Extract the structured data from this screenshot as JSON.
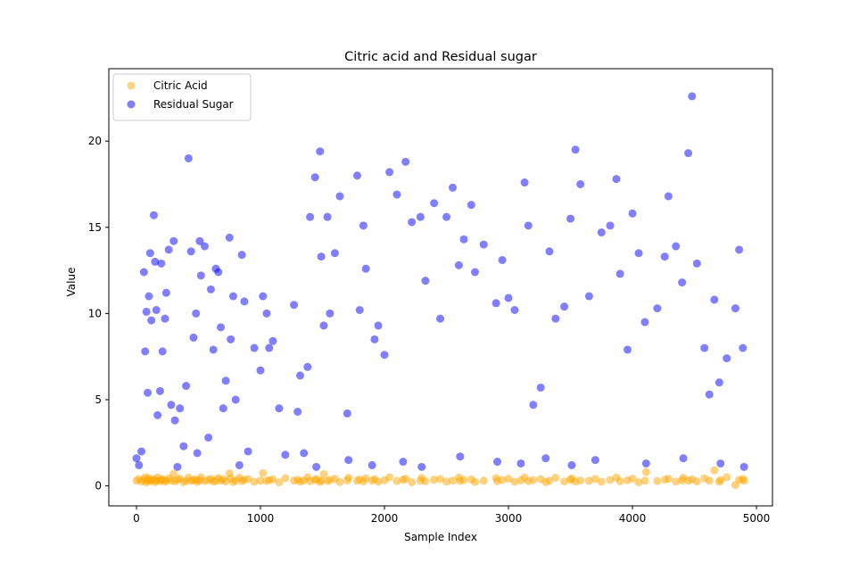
{
  "chart_data": {
    "type": "scatter",
    "title": "Citric acid and Residual sugar",
    "x_label": "Sample Index",
    "y_label": "Value",
    "x": [
      0,
      20,
      40,
      60,
      70,
      80,
      90,
      100,
      110,
      120,
      140,
      150,
      160,
      170,
      190,
      200,
      210,
      230,
      240,
      260,
      280,
      300,
      310,
      330,
      350,
      380,
      400,
      420,
      440,
      460,
      480,
      490,
      510,
      520,
      550,
      580,
      600,
      620,
      640,
      660,
      680,
      700,
      720,
      750,
      760,
      780,
      800,
      830,
      850,
      870,
      900,
      950,
      1000,
      1020,
      1050,
      1070,
      1100,
      1150,
      1200,
      1270,
      1300,
      1320,
      1350,
      1380,
      1400,
      1440,
      1450,
      1480,
      1490,
      1510,
      1540,
      1560,
      1600,
      1640,
      1700,
      1710,
      1780,
      1800,
      1830,
      1850,
      1900,
      1920,
      1950,
      2000,
      2040,
      2100,
      2150,
      2170,
      2220,
      2290,
      2300,
      2330,
      2400,
      2450,
      2500,
      2550,
      2600,
      2610,
      2640,
      2700,
      2730,
      2800,
      2900,
      2910,
      2950,
      3000,
      3050,
      3100,
      3130,
      3160,
      3200,
      3260,
      3300,
      3330,
      3380,
      3450,
      3500,
      3510,
      3540,
      3580,
      3650,
      3700,
      3750,
      3820,
      3870,
      3900,
      3960,
      4000,
      4050,
      4100,
      4110,
      4200,
      4260,
      4290,
      4350,
      4400,
      4410,
      4450,
      4480,
      4520,
      4580,
      4620,
      4660,
      4700,
      4710,
      4760,
      4830,
      4860,
      4890,
      4900
    ],
    "series": [
      {
        "name": "Citric Acid",
        "color": "orange",
        "values": [
          0.3,
          0.4,
          0.25,
          0.35,
          0.5,
          0.2,
          0.3,
          0.45,
          0.28,
          0.33,
          0.38,
          0.22,
          0.3,
          0.49,
          0.27,
          0.35,
          0.4,
          0.24,
          0.31,
          0.44,
          0.3,
          0.7,
          0.26,
          0.36,
          0.42,
          0.21,
          0.3,
          0.48,
          0.29,
          0.34,
          0.37,
          0.23,
          0.32,
          0.5,
          0.28,
          0.34,
          0.41,
          0.25,
          0.3,
          0.46,
          0.3,
          0.39,
          0.26,
          0.72,
          0.44,
          0.22,
          0.31,
          0.47,
          0.27,
          0.35,
          0.4,
          0.24,
          0.3,
          0.74,
          0.29,
          0.33,
          0.38,
          0.21,
          0.45,
          0.3,
          0.36,
          0.25,
          0.31,
          0.49,
          0.27,
          0.34,
          0.4,
          0.23,
          0.3,
          0.68,
          0.28,
          0.35,
          0.41,
          0.22,
          0.32,
          0.47,
          0.3,
          0.37,
          0.26,
          0.44,
          0.3,
          0.39,
          0.24,
          0.33,
          0.5,
          0.28,
          0.35,
          0.42,
          0.21,
          0.3,
          0.46,
          0.27,
          0.36,
          0.4,
          0.25,
          0.31,
          0.48,
          0.29,
          0.34,
          0.38,
          0.23,
          0.3,
          0.45,
          0.27,
          0.35,
          0.41,
          0.24,
          0.32,
          0.49,
          0.28,
          0.34,
          0.39,
          0.22,
          0.3,
          0.47,
          0.26,
          0.36,
          0.43,
          0.25,
          0.31,
          0.3,
          0.4,
          0.24,
          0.35,
          0.48,
          0.27,
          0.33,
          0.42,
          0.21,
          0.3,
          0.8,
          0.28,
          0.36,
          0.41,
          0.25,
          0.32,
          0.47,
          0.3,
          0.38,
          0.26,
          0.44,
          0.3,
          0.9,
          0.24,
          0.34,
          0.5,
          0.05,
          0.35,
          0.4,
          0.3
        ]
      },
      {
        "name": "Residual Sugar",
        "color": "blue",
        "values": [
          1.6,
          1.2,
          2.0,
          12.4,
          7.8,
          10.1,
          5.4,
          11.0,
          13.5,
          9.6,
          15.7,
          13.0,
          10.2,
          4.1,
          5.5,
          12.9,
          7.8,
          9.7,
          11.2,
          13.7,
          4.7,
          14.2,
          3.8,
          1.1,
          4.5,
          2.3,
          5.8,
          19.0,
          13.6,
          8.6,
          10.0,
          1.9,
          14.2,
          12.2,
          13.9,
          2.8,
          11.4,
          7.9,
          12.6,
          12.4,
          9.2,
          4.5,
          6.1,
          14.4,
          8.5,
          11.0,
          5.0,
          1.2,
          13.4,
          10.7,
          2.0,
          8.0,
          6.7,
          11.0,
          10.0,
          8.0,
          8.4,
          4.5,
          1.8,
          10.5,
          4.3,
          6.4,
          1.9,
          6.9,
          15.6,
          17.9,
          1.1,
          19.4,
          13.3,
          9.3,
          15.6,
          10.0,
          13.5,
          16.8,
          4.2,
          1.5,
          18.0,
          10.2,
          15.1,
          12.6,
          1.2,
          8.5,
          9.3,
          7.6,
          18.2,
          16.9,
          1.4,
          18.8,
          15.3,
          15.6,
          1.1,
          11.9,
          16.4,
          9.7,
          15.6,
          17.3,
          12.8,
          1.7,
          14.3,
          16.3,
          12.4,
          14.0,
          10.6,
          1.4,
          13.1,
          10.9,
          10.2,
          1.3,
          17.6,
          15.1,
          4.7,
          5.7,
          1.6,
          13.6,
          9.7,
          10.4,
          15.5,
          1.2,
          19.5,
          17.5,
          11.0,
          1.5,
          14.7,
          15.1,
          17.8,
          12.3,
          7.9,
          15.8,
          13.5,
          9.5,
          1.3,
          10.3,
          13.3,
          16.8,
          13.9,
          11.8,
          1.6,
          19.3,
          22.6,
          12.9,
          8.0,
          5.3,
          10.8,
          6.0,
          1.3,
          7.4,
          10.3,
          13.7,
          8.0,
          1.1
        ]
      }
    ],
    "xlim": [
      -223,
      5129
    ],
    "xticks": [
      0,
      1000,
      2000,
      3000,
      4000,
      5000
    ],
    "ylim": [
      -1.16,
      24.2
    ],
    "yticks": [
      0,
      5,
      10,
      15,
      20
    ],
    "legend": "upper left",
    "alpha": 0.5
  }
}
